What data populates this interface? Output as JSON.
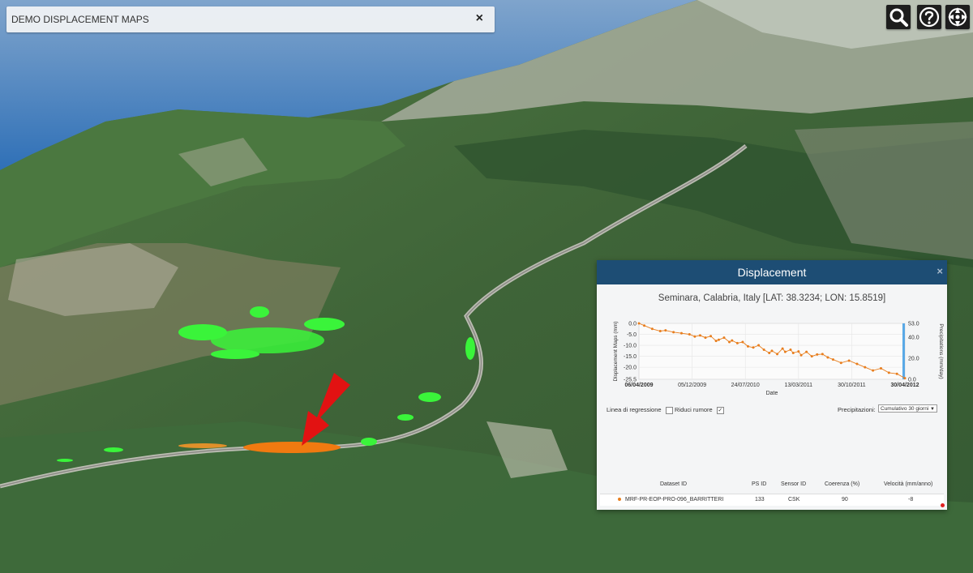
{
  "app": {
    "title": "DEMO DISPLACEMENT MAPS",
    "close_glyph": "×"
  },
  "controls": {
    "search_icon": "search-icon",
    "help_icon": "help-icon",
    "compass_icon": "compass-icon"
  },
  "panel": {
    "title": "Displacement",
    "close_glyph": "×",
    "location": "Seminara, Calabria, Italy [LAT: 38.3234; LON: 15.8519]",
    "options": {
      "regression_label": "Linea di regressione",
      "regression_checked": false,
      "noise_label": "Riduci rumore",
      "noise_checked": true,
      "noise_check_glyph": "✓",
      "precip_label": "Precipitazioni:",
      "precip_selected": "Cumulativo 30 giorni"
    },
    "table": {
      "headers": [
        "Dataset ID",
        "PS ID",
        "Sensor ID",
        "Coerenza (%)",
        "Velocità (mm/anno)"
      ],
      "row": [
        "MRF-PR-EOP-PRO-096_BARRITTERI",
        "133",
        "CSK",
        "90",
        "-8"
      ]
    }
  },
  "chart_data": {
    "type": "line",
    "xlabel": "Date",
    "ylabel": "Displacement Maps (mm)",
    "y2label": "Precipitations (mm/day)",
    "ylim": [
      -25.5,
      0.0
    ],
    "y2lim": [
      0,
      53
    ],
    "y_ticks": [
      "0.0",
      "-5.0",
      "-10.0",
      "-15.0",
      "-20.0",
      "-25.5"
    ],
    "y2_ticks": [
      "53.0",
      "40.0",
      "20.0",
      "0.0"
    ],
    "x_ticks": [
      "06/04/2009",
      "05/12/2009",
      "24/07/2010",
      "13/03/2011",
      "30/10/2011",
      "30/04/2012"
    ],
    "series_color": "#e87e1e",
    "precip_color": "#5aa9e6",
    "x": [
      0,
      0.02,
      0.05,
      0.08,
      0.1,
      0.13,
      0.16,
      0.19,
      0.21,
      0.23,
      0.25,
      0.27,
      0.29,
      0.3,
      0.32,
      0.34,
      0.35,
      0.37,
      0.39,
      0.41,
      0.43,
      0.45,
      0.47,
      0.49,
      0.5,
      0.52,
      0.54,
      0.55,
      0.57,
      0.58,
      0.6,
      0.61,
      0.63,
      0.65,
      0.67,
      0.69,
      0.71,
      0.73,
      0.76,
      0.79,
      0.82,
      0.85,
      0.88,
      0.91,
      0.94,
      0.97,
      1.0
    ],
    "values": [
      0.0,
      -1.0,
      -2.5,
      -3.5,
      -3.2,
      -4.0,
      -4.5,
      -5.0,
      -6.0,
      -5.5,
      -6.5,
      -5.8,
      -8.0,
      -7.5,
      -6.5,
      -8.5,
      -7.8,
      -9.0,
      -8.5,
      -10.5,
      -11.0,
      -10.0,
      -12.0,
      -13.5,
      -12.5,
      -14.0,
      -11.5,
      -13.0,
      -12.0,
      -13.5,
      -12.8,
      -14.5,
      -13.0,
      -15.0,
      -14.2,
      -14.0,
      -15.5,
      -16.5,
      -18.0,
      -17.0,
      -18.5,
      -20.0,
      -21.5,
      -20.5,
      -22.5,
      -23.0,
      -25.0
    ]
  }
}
